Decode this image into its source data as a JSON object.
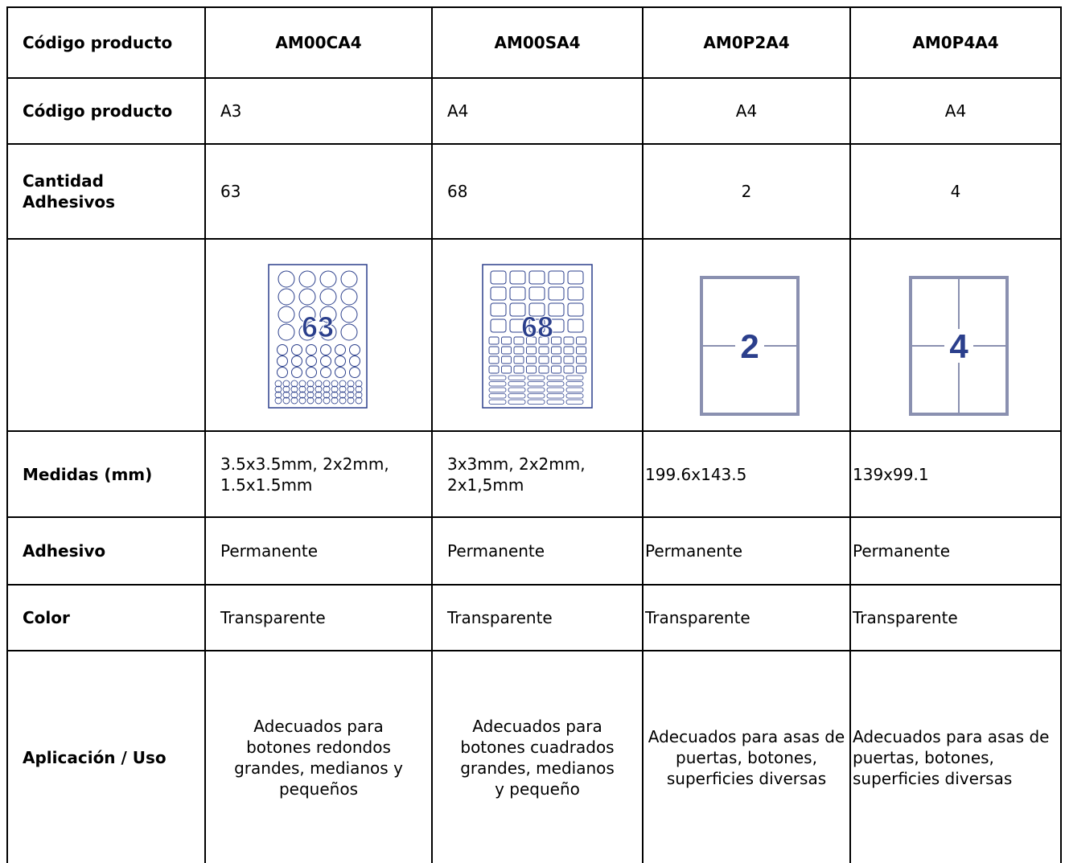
{
  "table": {
    "header": [
      "Código producto",
      "AM00CA4",
      "AM00SA4",
      "AM0P2A4",
      "AM0P4A4"
    ],
    "rows": [
      [
        "Código producto",
        "A3",
        "A4",
        "A4",
        "A4"
      ],
      [
        "Cantidad Adhesivos",
        "63",
        "68",
        "2",
        "4"
      ],
      [
        "Medidas (mm)",
        "3.5x3.5mm, 2x2mm, 1.5x1.5mm",
        "3x3mm, 2x2mm, 2x1,5mm",
        "199.6x143.5",
        "139x99.1"
      ],
      [
        "Adhesivo",
        "Permanente",
        "Permanente",
        "Permanente",
        "Permanente"
      ],
      [
        "Color",
        "Transparente",
        "Transparente",
        "Transparente",
        "Transparente"
      ],
      [
        "Aplicación / Uso",
        "Adecuados para botones redondos grandes, medianos y pequeños",
        "Adecuados para botones cuadrados grandes, medianos y pequeño",
        "Adecuados para asas de puertas, botones, superficies diversas",
        "Adecuados para asas de puertas, botones, superficies diversas"
      ]
    ],
    "images": [
      "63",
      "68",
      "2",
      "4"
    ]
  }
}
